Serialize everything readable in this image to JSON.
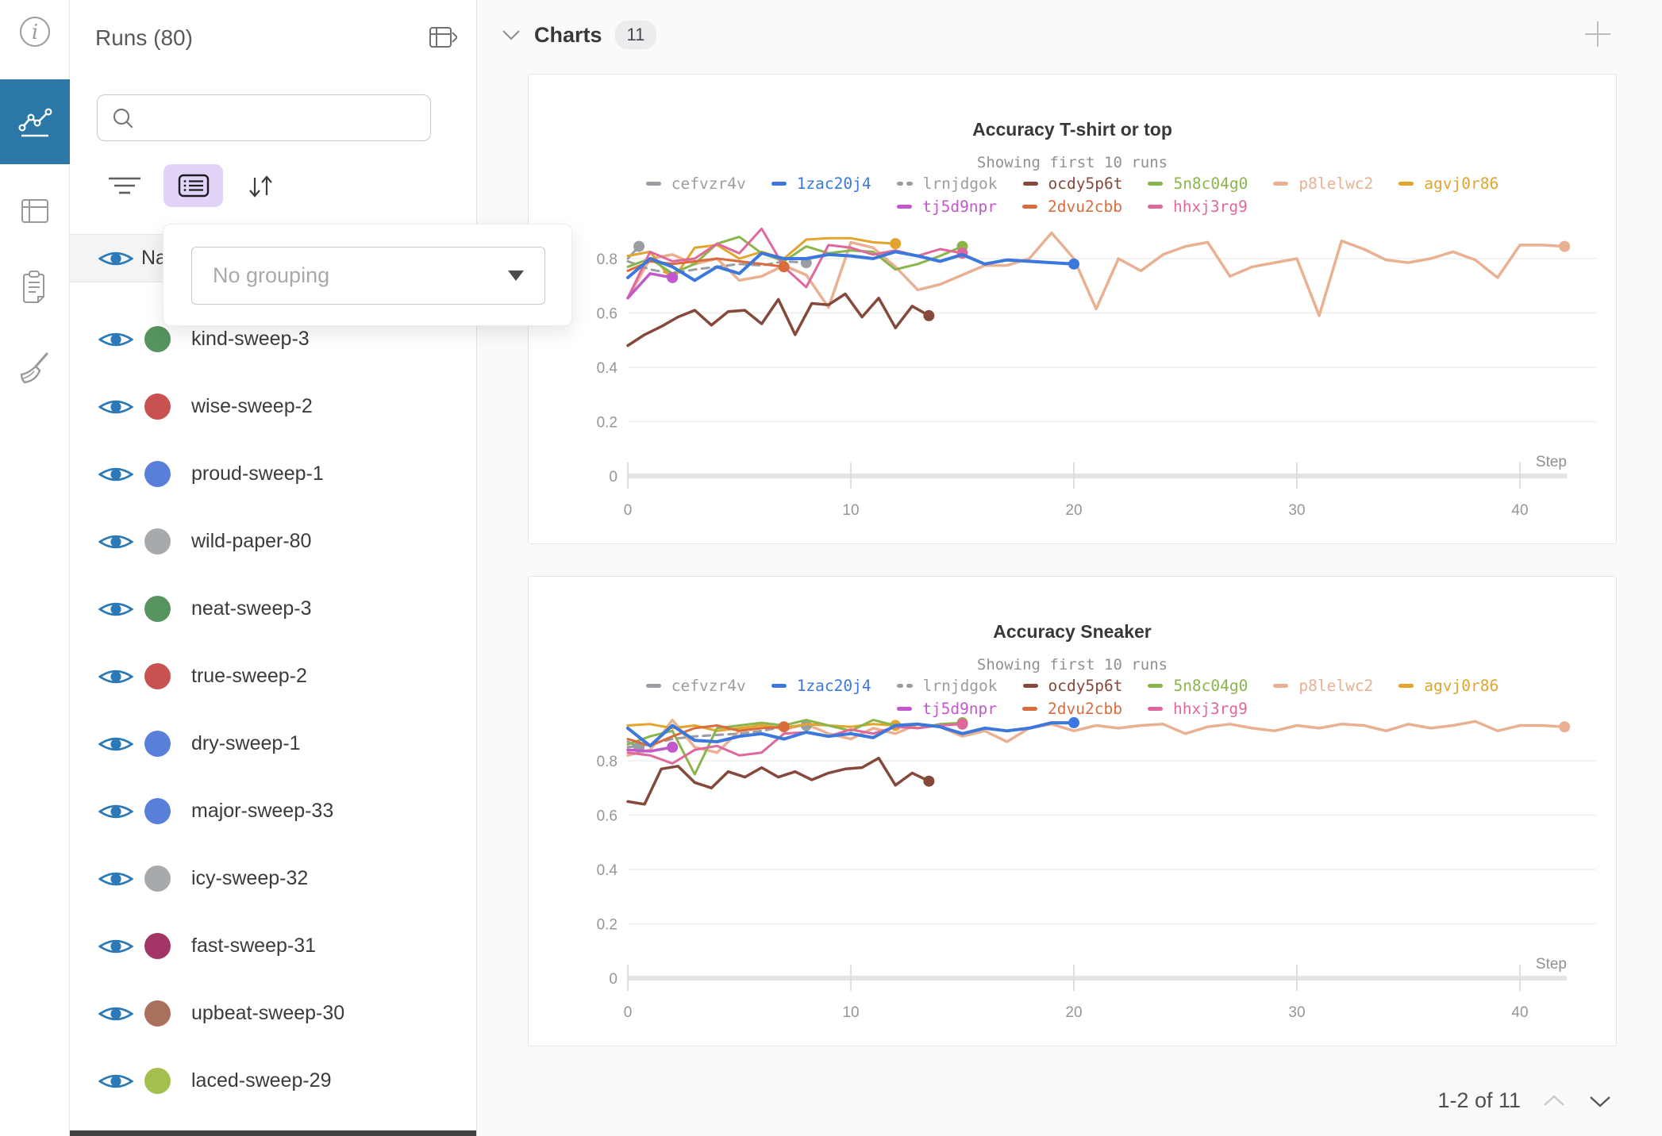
{
  "left_rail": {
    "icons": [
      {
        "name": "info-icon",
        "active": false
      },
      {
        "name": "workspace-chart-icon",
        "active": true
      },
      {
        "name": "runs-table-icon",
        "active": false
      },
      {
        "name": "logs-clipboard-icon",
        "active": false
      },
      {
        "name": "sweeps-broom-icon",
        "active": false
      }
    ],
    "active_color": "#2a77a8"
  },
  "runs_panel": {
    "title": "Runs (80)",
    "search": {
      "value": ""
    },
    "header_row_label": "Name",
    "grouping_popup": {
      "placeholder": "No grouping"
    },
    "runs": [
      {
        "name": "kind-sweep-3",
        "color": "#56935f"
      },
      {
        "name": "wise-sweep-2",
        "color": "#c85252"
      },
      {
        "name": "proud-sweep-1",
        "color": "#5a7fd8"
      },
      {
        "name": "wild-paper-80",
        "color": "#a7aaad"
      },
      {
        "name": "neat-sweep-3",
        "color": "#56935f"
      },
      {
        "name": "true-sweep-2",
        "color": "#c85252"
      },
      {
        "name": "dry-sweep-1",
        "color": "#5a7fd8"
      },
      {
        "name": "major-sweep-33",
        "color": "#5a7fd8"
      },
      {
        "name": "icy-sweep-32",
        "color": "#a7aaad"
      },
      {
        "name": "fast-sweep-31",
        "color": "#a23566"
      },
      {
        "name": "upbeat-sweep-30",
        "color": "#a9715b"
      },
      {
        "name": "laced-sweep-29",
        "color": "#a3c04e"
      }
    ]
  },
  "charts_section": {
    "title": "Charts",
    "count_badge": "11",
    "pagination": {
      "label": "1-2 of 11"
    }
  },
  "chart_data": [
    {
      "type": "line",
      "title": "Accuracy T-shirt or top",
      "subtitle": "Showing first 10 runs",
      "xlabel": "Step",
      "xticks": [
        0,
        10,
        20,
        30,
        40
      ],
      "yticks": [
        0,
        0.2,
        0.4,
        0.6,
        0.8
      ],
      "ylim": [
        0,
        1
      ],
      "grid": true,
      "legend_position": "top",
      "series": [
        {
          "id": "cefvzr4v",
          "color": "#9a9da1",
          "dash": false,
          "dot": true,
          "sx": 0.5,
          "row": 1,
          "w": 3,
          "y": [
            0.8,
            0.845
          ]
        },
        {
          "id": "1zac20j4",
          "color": "#3b77dd",
          "dash": false,
          "dot": true,
          "sx": 1,
          "row": 1,
          "w": 4,
          "y": [
            0.73,
            0.8,
            0.77,
            0.72,
            0.77,
            0.745,
            0.82,
            0.8,
            0.8,
            0.815,
            0.81,
            0.8,
            0.825,
            0.81,
            0.79,
            0.815,
            0.78,
            0.795,
            0.79,
            0.785,
            0.78
          ]
        },
        {
          "id": "lrnjdgok",
          "color": "#9a9da1",
          "dash": true,
          "dot": true,
          "sx": 1,
          "row": 1,
          "w": 3,
          "y": [
            0.79,
            0.76,
            0.745,
            0.76,
            0.77,
            0.78,
            0.775,
            0.79,
            0.785
          ]
        },
        {
          "id": "ocdy5p6t",
          "color": "#84493a",
          "dash": false,
          "dot": true,
          "sx": 0.75,
          "row": 1,
          "w": 3.5,
          "y": [
            0.48,
            0.52,
            0.55,
            0.585,
            0.61,
            0.555,
            0.605,
            0.61,
            0.56,
            0.65,
            0.52,
            0.635,
            0.63,
            0.67,
            0.585,
            0.655,
            0.545,
            0.625,
            0.59
          ]
        },
        {
          "id": "5n8c04g0",
          "color": "#8ab54a",
          "dash": false,
          "dot": true,
          "sx": 1,
          "row": 1,
          "w": 3,
          "y": [
            0.77,
            0.8,
            0.745,
            0.78,
            0.855,
            0.88,
            0.82,
            0.79,
            0.845,
            0.82,
            0.83,
            0.825,
            0.76,
            0.78,
            0.81,
            0.845
          ]
        },
        {
          "id": "p8lelwc2",
          "color": "#e9b091",
          "dash": false,
          "dot": true,
          "sx": 1,
          "row": 1,
          "w": 3.5,
          "y": [
            0.655,
            0.8,
            0.815,
            0.78,
            0.8,
            0.72,
            0.735,
            0.775,
            0.74,
            0.62,
            0.86,
            0.84,
            0.77,
            0.685,
            0.705,
            0.74,
            0.775,
            0.775,
            0.8,
            0.895,
            0.8,
            0.615,
            0.8,
            0.755,
            0.815,
            0.845,
            0.86,
            0.735,
            0.77,
            0.785,
            0.8,
            0.59,
            0.865,
            0.835,
            0.795,
            0.785,
            0.8,
            0.825,
            0.795,
            0.73,
            0.85,
            0.85,
            0.845
          ]
        },
        {
          "id": "agvj0r86",
          "color": "#e2a42d",
          "dash": false,
          "dot": true,
          "sx": 1,
          "row": 1,
          "w": 3,
          "y": [
            0.81,
            0.825,
            0.72,
            0.84,
            0.85,
            0.8,
            0.825,
            0.8,
            0.87,
            0.875,
            0.875,
            0.86,
            0.855
          ]
        },
        {
          "id": "tj5d9npr",
          "color": "#c158cc",
          "dash": false,
          "dot": true,
          "sx": 1,
          "row": 2,
          "w": 3.5,
          "y": [
            0.655,
            0.745,
            0.73
          ]
        },
        {
          "id": "2dvu2cbb",
          "color": "#d96b3c",
          "dash": false,
          "dot": true,
          "sx": 1,
          "row": 2,
          "w": 3,
          "y": [
            0.755,
            0.79,
            0.78,
            0.79,
            0.8,
            0.79,
            0.78,
            0.77
          ]
        },
        {
          "id": "hhxj3rg9",
          "color": "#e0679c",
          "dash": false,
          "dot": true,
          "sx": 1,
          "row": 2,
          "w": 3,
          "y": [
            0.655,
            0.825,
            0.79,
            0.8,
            0.855,
            0.82,
            0.91,
            0.77,
            0.695,
            0.85,
            0.84,
            0.815,
            0.83,
            0.81,
            0.835,
            0.82
          ]
        }
      ]
    },
    {
      "type": "line",
      "title": "Accuracy Sneaker",
      "subtitle": "Showing first 10 runs",
      "xlabel": "Step",
      "xticks": [
        0,
        10,
        20,
        30,
        40
      ],
      "yticks": [
        0,
        0.2,
        0.4,
        0.6,
        0.8
      ],
      "ylim": [
        0,
        1
      ],
      "grid": true,
      "legend_position": "top",
      "series": [
        {
          "id": "cefvzr4v",
          "color": "#9a9da1",
          "dash": false,
          "dot": true,
          "sx": 0.5,
          "row": 1,
          "w": 3,
          "y": [
            0.87,
            0.85
          ]
        },
        {
          "id": "1zac20j4",
          "color": "#3b77dd",
          "dash": false,
          "dot": true,
          "sx": 1,
          "row": 1,
          "w": 4,
          "y": [
            0.92,
            0.855,
            0.93,
            0.875,
            0.87,
            0.89,
            0.9,
            0.88,
            0.905,
            0.89,
            0.9,
            0.885,
            0.93,
            0.935,
            0.925,
            0.9,
            0.92,
            0.91,
            0.92,
            0.94,
            0.94
          ]
        },
        {
          "id": "lrnjdgok",
          "color": "#9a9da1",
          "dash": true,
          "dot": true,
          "sx": 1,
          "row": 1,
          "w": 3,
          "y": [
            0.85,
            0.86,
            0.88,
            0.89,
            0.895,
            0.9,
            0.91,
            0.925,
            0.93
          ]
        },
        {
          "id": "ocdy5p6t",
          "color": "#84493a",
          "dash": false,
          "dot": true,
          "sx": 0.75,
          "row": 1,
          "w": 3.5,
          "y": [
            0.65,
            0.64,
            0.77,
            0.78,
            0.72,
            0.7,
            0.76,
            0.74,
            0.775,
            0.74,
            0.76,
            0.73,
            0.755,
            0.77,
            0.775,
            0.81,
            0.71,
            0.755,
            0.725
          ]
        },
        {
          "id": "5n8c04g0",
          "color": "#8ab54a",
          "dash": false,
          "dot": true,
          "sx": 1,
          "row": 1,
          "w": 3,
          "y": [
            0.86,
            0.89,
            0.91,
            0.75,
            0.92,
            0.93,
            0.94,
            0.93,
            0.95,
            0.93,
            0.91,
            0.95,
            0.93,
            0.92,
            0.935,
            0.94
          ]
        },
        {
          "id": "p8lelwc2",
          "color": "#e9b091",
          "dash": false,
          "dot": true,
          "sx": 1,
          "row": 1,
          "w": 3.5,
          "y": [
            0.82,
            0.84,
            0.95,
            0.85,
            0.83,
            0.91,
            0.935,
            0.915,
            0.935,
            0.9,
            0.88,
            0.92,
            0.9,
            0.935,
            0.925,
            0.89,
            0.91,
            0.87,
            0.92,
            0.935,
            0.91,
            0.93,
            0.92,
            0.93,
            0.935,
            0.9,
            0.925,
            0.935,
            0.92,
            0.91,
            0.93,
            0.92,
            0.935,
            0.93,
            0.91,
            0.935,
            0.92,
            0.93,
            0.945,
            0.91,
            0.93,
            0.93,
            0.925
          ]
        },
        {
          "id": "agvj0r86",
          "color": "#e2a42d",
          "dash": false,
          "dot": true,
          "sx": 1,
          "row": 1,
          "w": 3,
          "y": [
            0.93,
            0.935,
            0.92,
            0.93,
            0.91,
            0.92,
            0.93,
            0.92,
            0.935,
            0.93,
            0.925,
            0.935,
            0.93
          ]
        },
        {
          "id": "tj5d9npr",
          "color": "#c158cc",
          "dash": false,
          "dot": true,
          "sx": 1,
          "row": 2,
          "w": 3.5,
          "y": [
            0.84,
            0.835,
            0.85
          ]
        },
        {
          "id": "2dvu2cbb",
          "color": "#d96b3c",
          "dash": false,
          "dot": true,
          "sx": 1,
          "row": 2,
          "w": 3,
          "y": [
            0.88,
            0.855,
            0.89,
            0.92,
            0.93,
            0.91,
            0.92,
            0.925
          ]
        },
        {
          "id": "hhxj3rg9",
          "color": "#e0679c",
          "dash": false,
          "dot": true,
          "sx": 1,
          "row": 2,
          "w": 3,
          "y": [
            0.83,
            0.82,
            0.79,
            0.84,
            0.855,
            0.82,
            0.83,
            0.9,
            0.905,
            0.89,
            0.915,
            0.9,
            0.925,
            0.92,
            0.93,
            0.935
          ]
        }
      ]
    }
  ]
}
